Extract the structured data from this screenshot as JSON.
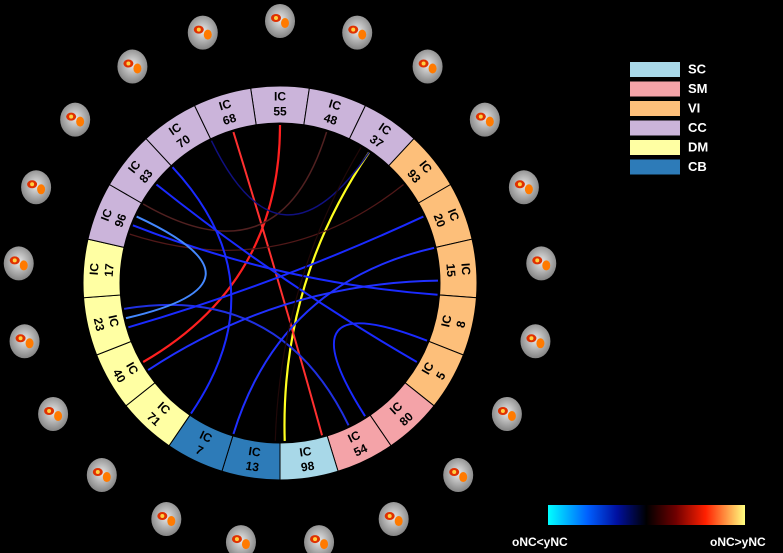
{
  "ring": {
    "prefix": "IC",
    "segments": [
      {
        "number": "55",
        "group": "CC"
      },
      {
        "number": "48",
        "group": "CC"
      },
      {
        "number": "37",
        "group": "CC"
      },
      {
        "number": "93",
        "group": "VI"
      },
      {
        "number": "20",
        "group": "VI"
      },
      {
        "number": "15",
        "group": "VI"
      },
      {
        "number": "8",
        "group": "VI"
      },
      {
        "number": "5",
        "group": "VI"
      },
      {
        "number": "80",
        "group": "SM"
      },
      {
        "number": "54",
        "group": "SM"
      },
      {
        "number": "98",
        "group": "SC"
      },
      {
        "number": "13",
        "group": "CB"
      },
      {
        "number": "7",
        "group": "CB"
      },
      {
        "number": "71",
        "group": "DM"
      },
      {
        "number": "40",
        "group": "DM"
      },
      {
        "number": "23",
        "group": "DM"
      },
      {
        "number": "17",
        "group": "DM"
      },
      {
        "number": "96",
        "group": "CC"
      },
      {
        "number": "83",
        "group": "CC"
      },
      {
        "number": "70",
        "group": "CC"
      },
      {
        "number": "68",
        "group": "CC"
      }
    ]
  },
  "legend": [
    {
      "name": "SC",
      "color": "#a8d8e8"
    },
    {
      "name": "SM",
      "color": "#f4a3a8"
    },
    {
      "name": "VI",
      "color": "#fdbf7a"
    },
    {
      "name": "CC",
      "color": "#cbb4da"
    },
    {
      "name": "DM",
      "color": "#ffffa3"
    },
    {
      "name": "CB",
      "color": "#2d7bb8"
    }
  ],
  "colorbar": {
    "left_label": "oNC<yNC",
    "right_label": "oNC>yNC"
  }
}
